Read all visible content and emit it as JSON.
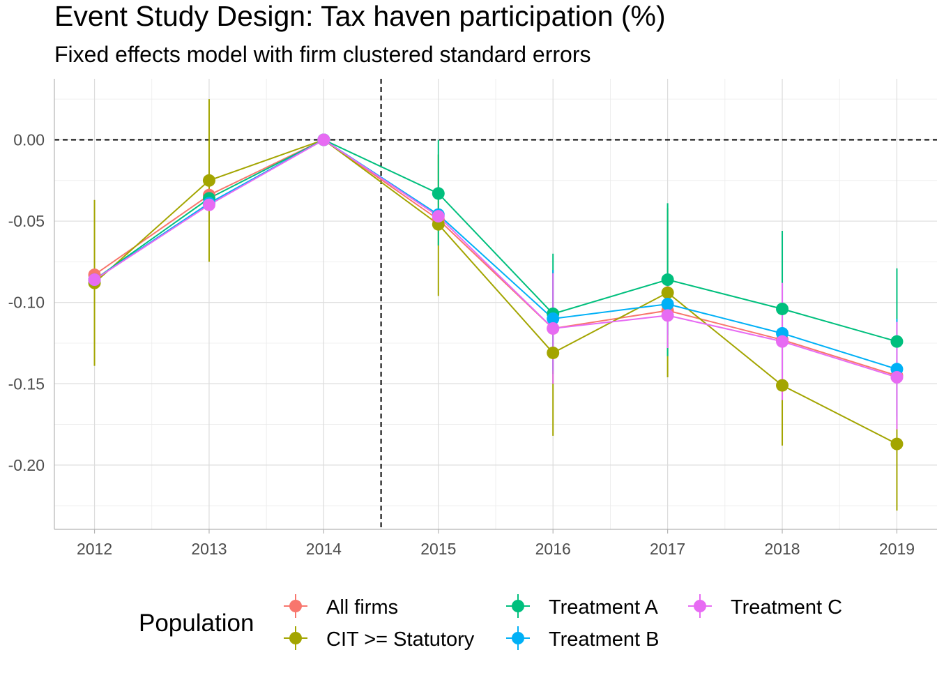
{
  "chart_data": {
    "type": "line",
    "title": "Event Study Design: Tax haven participation (%)",
    "subtitle": "Fixed effects model with firm clustered standard errors",
    "xlabel": "",
    "ylabel": "",
    "x": [
      2012,
      2013,
      2014,
      2015,
      2016,
      2017,
      2018,
      2019
    ],
    "x_tick_labels": [
      "2012",
      "2013",
      "2014",
      "2015",
      "2016",
      "2017",
      "2018",
      "2019"
    ],
    "xlim": [
      2011.65,
      2019.35
    ],
    "ylim": [
      -0.2395,
      0.0375
    ],
    "y_ticks": [
      0.0,
      -0.05,
      -0.1,
      -0.15,
      -0.2
    ],
    "y_tick_labels": [
      "0.00",
      "-0.05",
      "-0.10",
      "-0.15",
      "-0.20"
    ],
    "grid": true,
    "reference_lines": {
      "horizontal_y": 0,
      "vertical_x": 2014.5,
      "style": "dashed"
    },
    "legend": {
      "title": "Population",
      "position": "bottom"
    },
    "series": [
      {
        "name": "All firms",
        "color": "#F8766D",
        "values": [
          -0.083,
          -0.034,
          0.0,
          -0.049,
          -0.116,
          -0.105,
          -0.123,
          -0.145
        ],
        "lower": [
          -0.083,
          -0.034,
          0.0,
          -0.049,
          -0.116,
          -0.105,
          -0.123,
          -0.145
        ],
        "upper": [
          -0.083,
          -0.034,
          0.0,
          -0.049,
          -0.116,
          -0.105,
          -0.123,
          -0.145
        ]
      },
      {
        "name": "CIT >= Statutory",
        "color": "#A3A500",
        "values": [
          -0.088,
          -0.025,
          0.0,
          -0.052,
          -0.131,
          -0.094,
          -0.151,
          -0.187
        ],
        "lower": [
          -0.139,
          -0.075,
          0.0,
          -0.096,
          -0.182,
          -0.146,
          -0.188,
          -0.228
        ],
        "upper": [
          -0.037,
          0.025,
          0.0,
          -0.009,
          -0.08,
          -0.042,
          -0.114,
          -0.147
        ]
      },
      {
        "name": "Treatment A",
        "color": "#00BF7D",
        "values": [
          -0.086,
          -0.036,
          0.0,
          -0.033,
          -0.107,
          -0.086,
          -0.104,
          -0.124
        ],
        "lower": [
          -0.086,
          -0.036,
          0.0,
          -0.065,
          -0.144,
          -0.133,
          -0.152,
          -0.17
        ],
        "upper": [
          -0.086,
          -0.036,
          0.0,
          0.0,
          -0.07,
          -0.039,
          -0.056,
          -0.079
        ]
      },
      {
        "name": "Treatment B",
        "color": "#00B0F6",
        "values": [
          -0.086,
          -0.039,
          0.0,
          -0.046,
          -0.11,
          -0.101,
          -0.119,
          -0.141
        ],
        "lower": [
          -0.086,
          -0.039,
          0.0,
          -0.046,
          -0.142,
          -0.12,
          -0.15,
          -0.172
        ],
        "upper": [
          -0.086,
          -0.039,
          0.0,
          -0.046,
          -0.08,
          -0.082,
          -0.088,
          -0.11
        ]
      },
      {
        "name": "Treatment C",
        "color": "#E76BF3",
        "values": [
          -0.086,
          -0.04,
          0.0,
          -0.047,
          -0.116,
          -0.108,
          -0.124,
          -0.146
        ],
        "lower": [
          -0.086,
          -0.04,
          0.0,
          -0.047,
          -0.15,
          -0.128,
          -0.16,
          -0.178
        ],
        "upper": [
          -0.086,
          -0.04,
          0.0,
          -0.047,
          -0.082,
          -0.088,
          -0.088,
          -0.112
        ]
      }
    ]
  }
}
